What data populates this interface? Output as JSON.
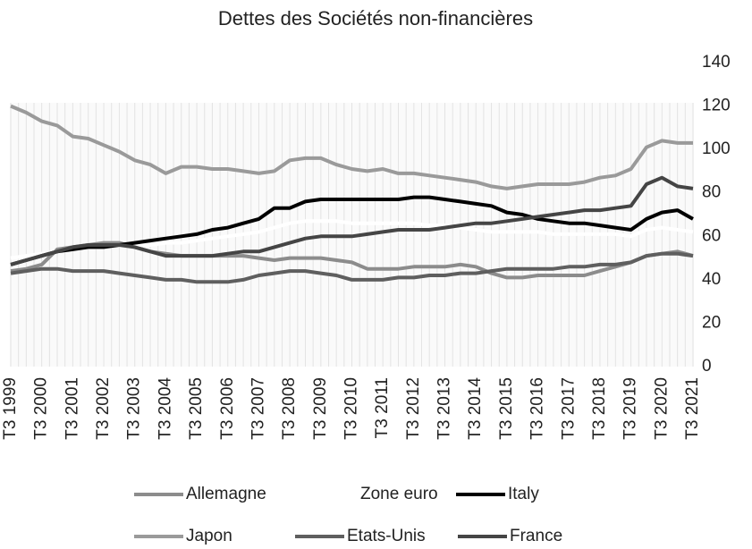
{
  "chart_data": {
    "type": "line",
    "title": "Dettes des Sociétés non-financières",
    "categories": [
      "T3 1999",
      null,
      "T3 2000",
      null,
      "T3 2001",
      null,
      "T3 2002",
      null,
      "T3 2003",
      null,
      "T3 2004",
      null,
      "T3 2005",
      null,
      "T3 2006",
      null,
      "T3 2007",
      null,
      "T3 2008",
      null,
      "T3 2009",
      null,
      "T3 2010",
      null,
      "T3 2011",
      null,
      "T3 2012",
      null,
      "T3 2013",
      null,
      "T3 2014",
      null,
      "T3 2015",
      null,
      "T3 2016",
      null,
      "T3 2017",
      null,
      "T3 2018",
      null,
      "T3 2019",
      null,
      "T3 2020",
      null,
      "T3 2021"
    ],
    "series": [
      {
        "name": "Allemagne",
        "color": "#8c8c8c",
        "values": [
          44,
          45,
          47,
          54,
          55,
          56,
          57,
          57,
          55,
          53,
          52,
          51,
          51,
          51,
          51,
          51,
          50,
          49,
          50,
          50,
          50,
          49,
          48,
          45,
          45,
          45,
          46,
          46,
          46,
          47,
          46,
          43,
          41,
          41,
          42,
          42,
          42,
          42,
          44,
          46,
          48,
          51,
          52,
          53,
          51
        ]
      },
      {
        "name": "Zone euro",
        "color": "#ffffff",
        "values": [
          50,
          51,
          52,
          53,
          54,
          55,
          55,
          56,
          56,
          56,
          57,
          57,
          58,
          59,
          60,
          61,
          62,
          64,
          66,
          67,
          67,
          67,
          66,
          66,
          66,
          66,
          66,
          65,
          65,
          64,
          63,
          62,
          62,
          62,
          62,
          61,
          61,
          61,
          61,
          61,
          60,
          63,
          64,
          63,
          62
        ]
      },
      {
        "name": "Italy",
        "color": "#000000",
        "values": [
          47,
          49,
          51,
          53,
          54,
          55,
          55,
          56,
          57,
          58,
          59,
          60,
          61,
          63,
          64,
          66,
          68,
          73,
          73,
          76,
          77,
          77,
          77,
          77,
          77,
          77,
          78,
          78,
          77,
          76,
          75,
          74,
          71,
          70,
          68,
          67,
          66,
          66,
          65,
          64,
          63,
          68,
          71,
          72,
          68
        ]
      },
      {
        "name": "Japon",
        "color": "#9a9a9a",
        "values": [
          120,
          117,
          113,
          111,
          106,
          105,
          102,
          99,
          95,
          93,
          89,
          92,
          92,
          91,
          91,
          90,
          89,
          90,
          95,
          96,
          96,
          93,
          91,
          90,
          91,
          89,
          89,
          88,
          87,
          86,
          85,
          83,
          82,
          83,
          84,
          84,
          84,
          85,
          87,
          88,
          91,
          101,
          104,
          103,
          103
        ]
      },
      {
        "name": "Etats-Unis",
        "color": "#5f5f5f",
        "values": [
          43,
          44,
          45,
          45,
          44,
          44,
          44,
          43,
          42,
          41,
          40,
          40,
          39,
          39,
          39,
          40,
          42,
          43,
          44,
          44,
          43,
          42,
          40,
          40,
          40,
          41,
          41,
          42,
          42,
          43,
          43,
          44,
          45,
          45,
          45,
          45,
          46,
          46,
          47,
          47,
          48,
          51,
          52,
          52,
          51
        ]
      },
      {
        "name": "France",
        "color": "#454545",
        "values": [
          47,
          49,
          51,
          53,
          55,
          56,
          56,
          56,
          55,
          53,
          51,
          51,
          51,
          51,
          52,
          53,
          53,
          55,
          57,
          59,
          60,
          60,
          60,
          61,
          62,
          63,
          63,
          63,
          64,
          65,
          66,
          66,
          67,
          68,
          69,
          70,
          71,
          72,
          72,
          73,
          74,
          84,
          87,
          83,
          82
        ]
      }
    ],
    "ylim": [
      0,
      140
    ],
    "yticks": [
      0,
      20,
      40,
      60,
      80,
      100,
      120,
      140
    ],
    "y_axis_side": "right",
    "legend": "bottom"
  }
}
